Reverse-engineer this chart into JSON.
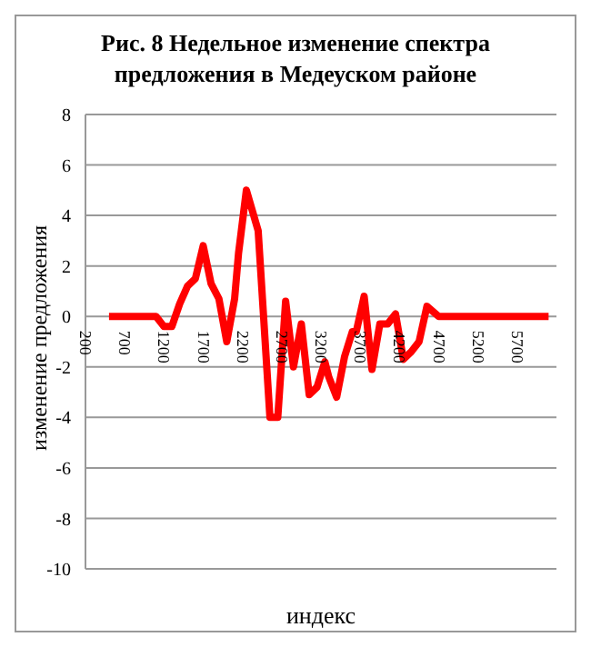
{
  "chart_data": {
    "type": "line",
    "title": "Рис. 8 Недельное изменение спектра\nпредложения в Медеуском районе",
    "xlabel": "индекс",
    "ylabel": "изменение предложения",
    "x": [
      500,
      1100,
      1200,
      1300,
      1400,
      1500,
      1600,
      1700,
      1800,
      1900,
      2000,
      2100,
      2150,
      2250,
      2400,
      2550,
      2650,
      2750,
      2850,
      2950,
      3050,
      3150,
      3250,
      3300,
      3400,
      3500,
      3600,
      3650,
      3750,
      3850,
      3950,
      4050,
      4150,
      4250,
      4350,
      4450,
      4550,
      4700,
      6100
    ],
    "series": [
      {
        "color": "#ff0000",
        "values": [
          0,
          0,
          -0.4,
          -0.4,
          0.5,
          1.2,
          1.5,
          2.8,
          1.3,
          0.7,
          -1,
          0.7,
          2.5,
          5,
          3.4,
          -4,
          -4,
          0.6,
          -2,
          -0.3,
          -3.1,
          -2.8,
          -1.8,
          -2.4,
          -3.2,
          -1.6,
          -0.6,
          -0.6,
          0.8,
          -2.1,
          -0.3,
          -0.3,
          0.1,
          -1.7,
          -1.4,
          -1,
          0.4,
          0,
          0
        ]
      }
    ],
    "xlim": [
      200,
      6200
    ],
    "xticks": [
      200,
      700,
      1200,
      1700,
      2200,
      2700,
      3200,
      3700,
      4200,
      4700,
      5200,
      5700
    ],
    "ylim": [
      -10,
      8
    ],
    "yticks": [
      -10,
      -8,
      -6,
      -4,
      -2,
      0,
      2,
      4,
      6,
      8
    ],
    "grid": "y",
    "legend": false,
    "marker": "none",
    "line_style": "solid"
  }
}
